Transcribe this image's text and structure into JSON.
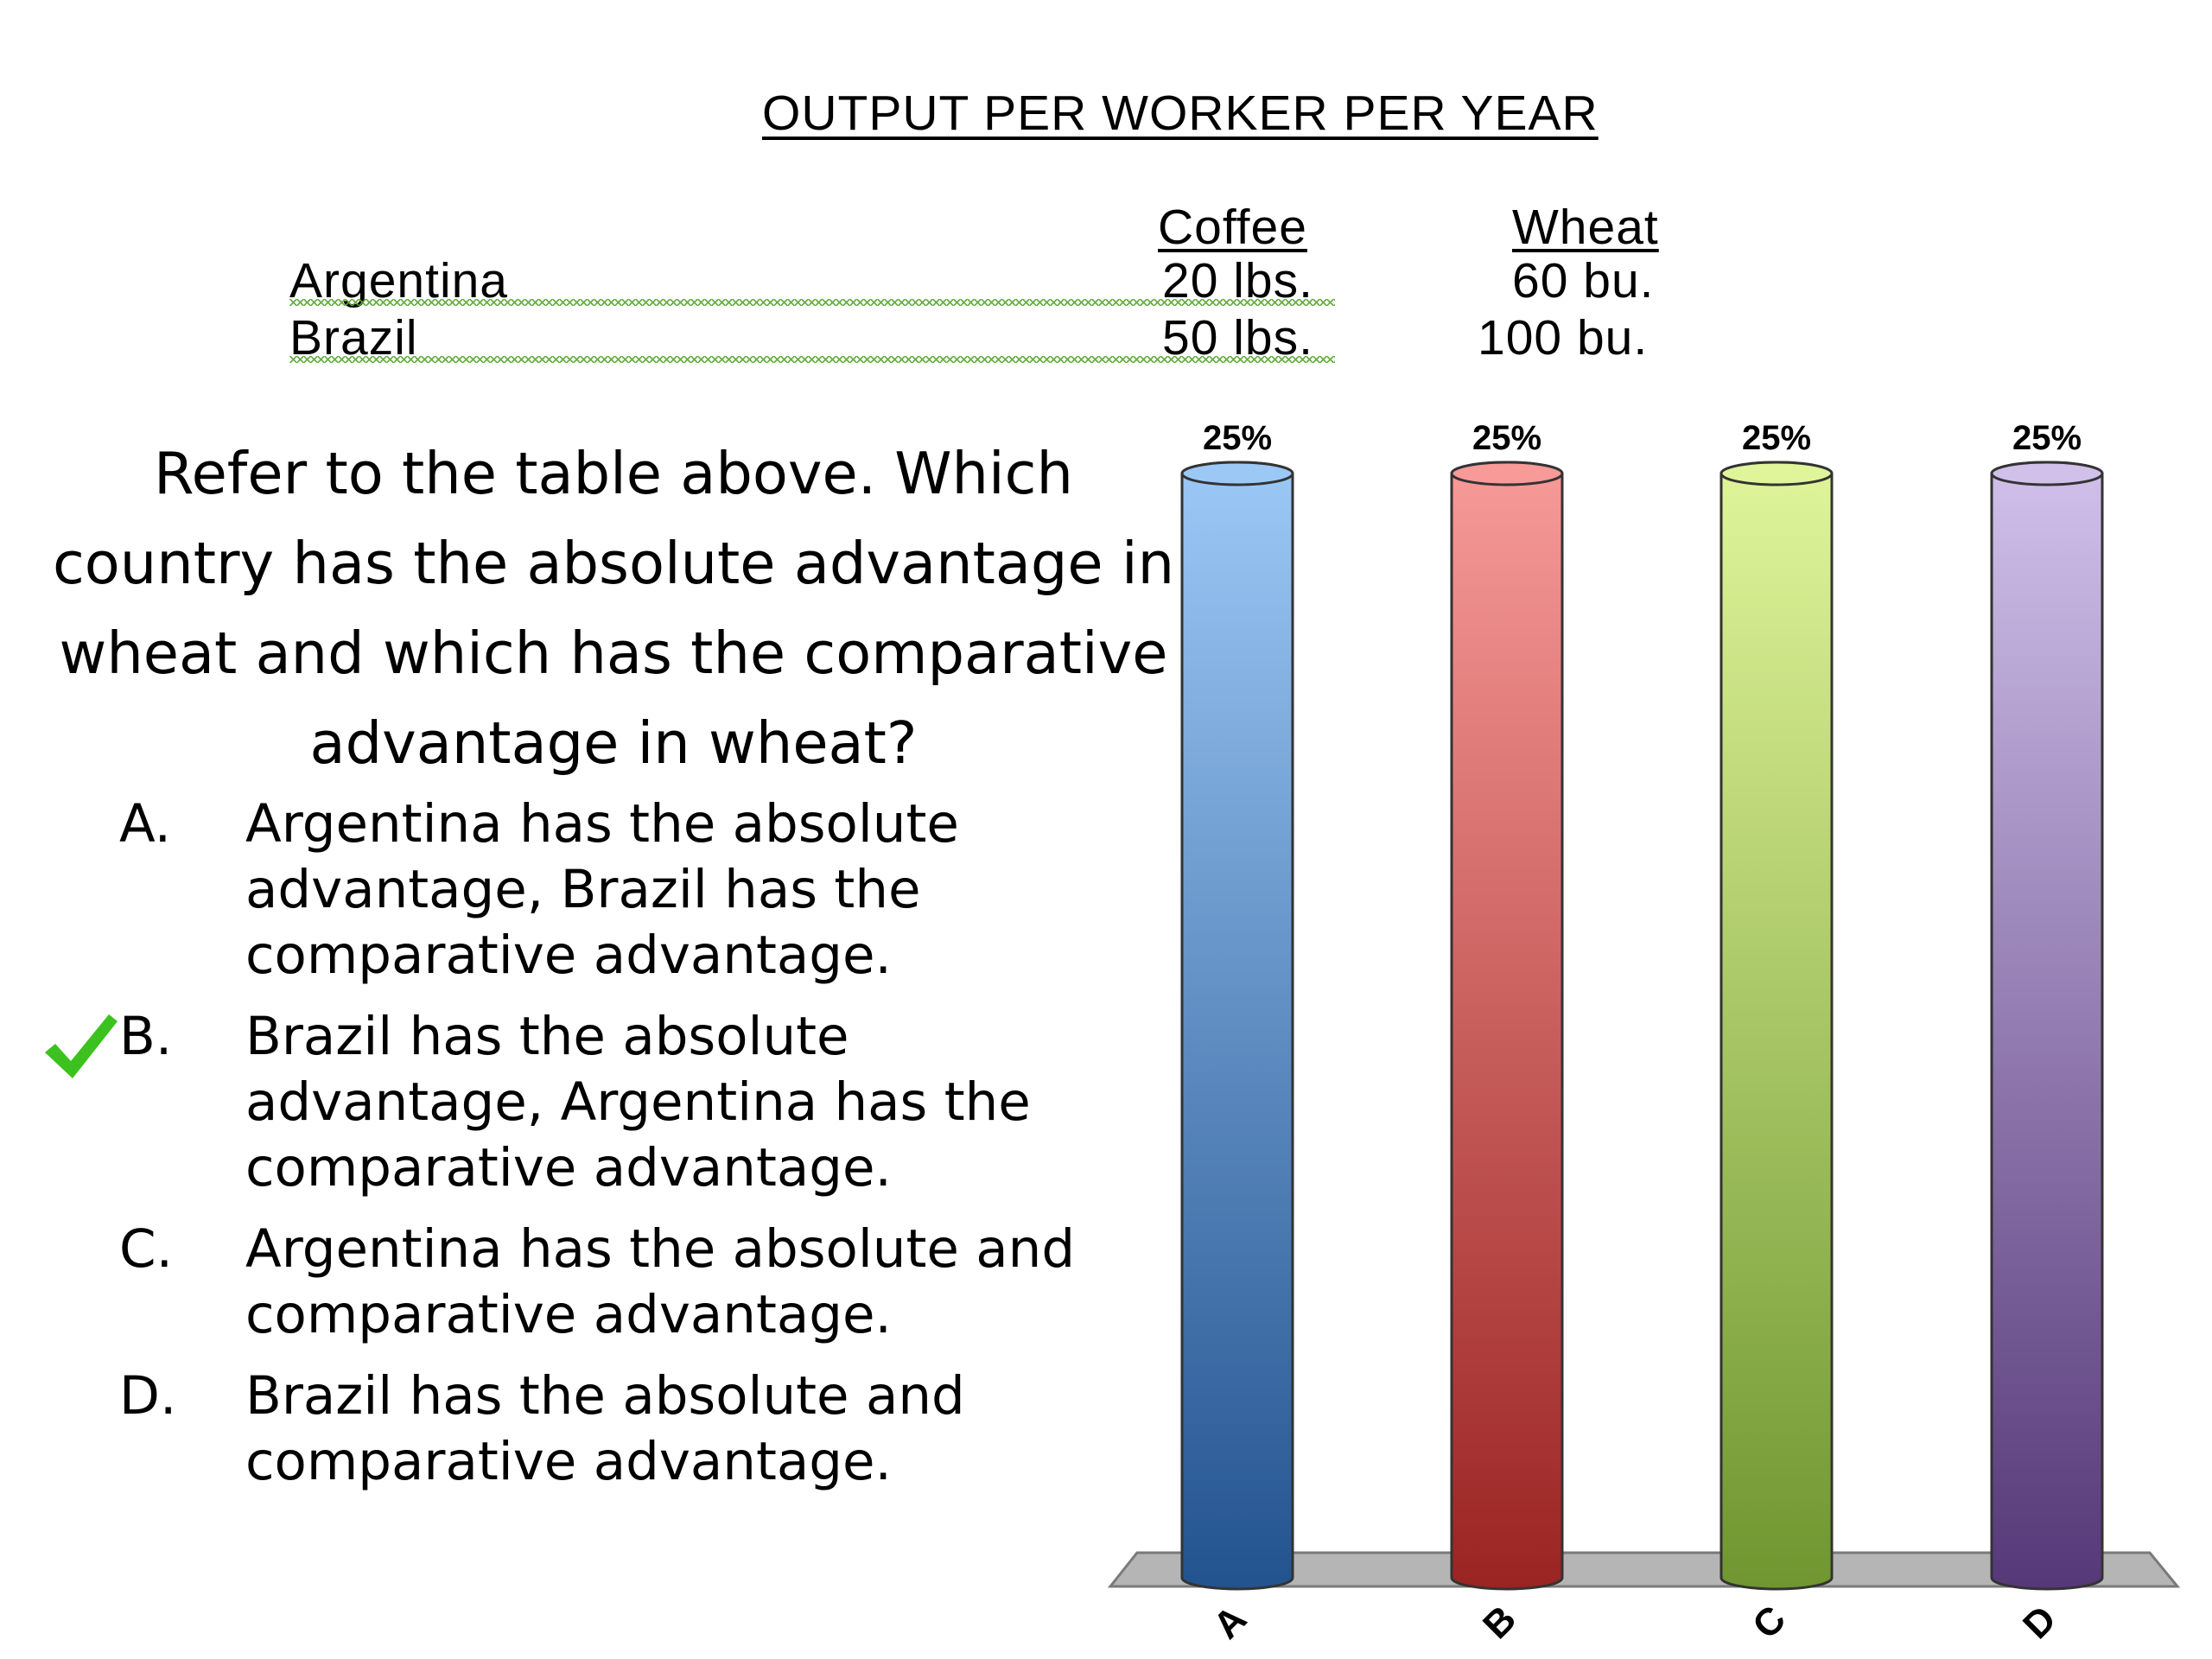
{
  "table": {
    "title": "OUTPUT PER WORKER PER YEAR",
    "headers": [
      "Coffee",
      "Wheat"
    ],
    "rows": [
      {
        "country": "Argentina",
        "coffee": "20 lbs.",
        "wheat": "60 bu."
      },
      {
        "country": "Brazil",
        "coffee": "50 lbs.",
        "wheat": "100 bu."
      }
    ]
  },
  "question": {
    "text": "Refer to the table above. Which country has the absolute advantage in wheat and which has the comparative advantage in wheat?",
    "options": [
      {
        "letter": "A.",
        "text": "Argentina has the absolute advantage, Brazil has the comparative advantage.",
        "correct": false
      },
      {
        "letter": "B.",
        "text": "Brazil has the absolute advantage, Argentina has the comparative advantage.",
        "correct": true
      },
      {
        "letter": "C.",
        "text": "Argentina has the absolute and comparative advantage.",
        "correct": false
      },
      {
        "letter": "D.",
        "text": "Brazil has the absolute and comparative advantage.",
        "correct": false
      }
    ],
    "check_icon": "checkmark-icon",
    "check_color": "#3cc21e"
  },
  "chart_data": {
    "type": "bar",
    "categories": [
      "A",
      "B",
      "C",
      "D"
    ],
    "values": [
      25,
      25,
      25,
      25
    ],
    "data_labels": [
      "25%",
      "25%",
      "25%",
      "25%"
    ],
    "ylim": [
      0,
      25
    ],
    "colors": [
      {
        "light": "#9cc8f6",
        "dark": "#23538f"
      },
      {
        "light": "#f79a98",
        "dark": "#9a2422"
      },
      {
        "light": "#e0f59a",
        "dark": "#6f9630"
      },
      {
        "light": "#d0c0ea",
        "dark": "#553878"
      }
    ],
    "grid": false,
    "legend": "none"
  }
}
